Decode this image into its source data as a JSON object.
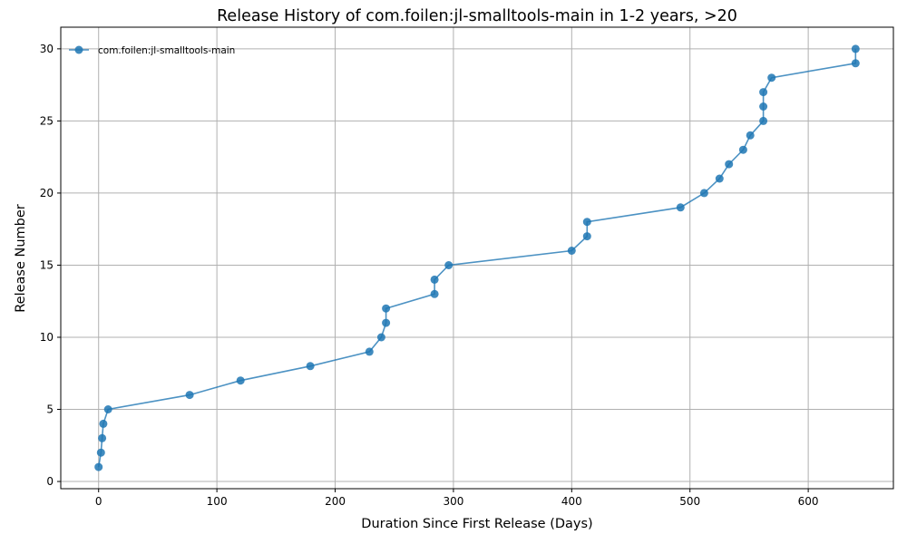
{
  "chart_data": {
    "type": "line",
    "title": "Release History of com.foilen:jl-smalltools-main in 1-2 years, >20",
    "xlabel": "Duration Since First Release (Days)",
    "ylabel": "Release Number",
    "xlim": [
      -32,
      672
    ],
    "ylim": [
      -0.5,
      31.5
    ],
    "xticks": [
      0,
      100,
      200,
      300,
      400,
      500,
      600
    ],
    "yticks": [
      0,
      5,
      10,
      15,
      20,
      25,
      30
    ],
    "grid": true,
    "legend_position": "top-left",
    "series": [
      {
        "name": "com.foilen:jl-smalltools-main",
        "color": "#1f77b4",
        "x": [
          0,
          2,
          3,
          4,
          8,
          77,
          120,
          179,
          229,
          239,
          243,
          243,
          284,
          284,
          296,
          400,
          413,
          413,
          492,
          512,
          525,
          533,
          545,
          551,
          562,
          562,
          562,
          569,
          640,
          640
        ],
        "y": [
          1,
          2,
          3,
          4,
          5,
          6,
          7,
          8,
          9,
          10,
          11,
          12,
          13,
          14,
          15,
          16,
          17,
          18,
          19,
          20,
          21,
          22,
          23,
          24,
          25,
          26,
          27,
          28,
          29,
          30
        ]
      }
    ]
  }
}
